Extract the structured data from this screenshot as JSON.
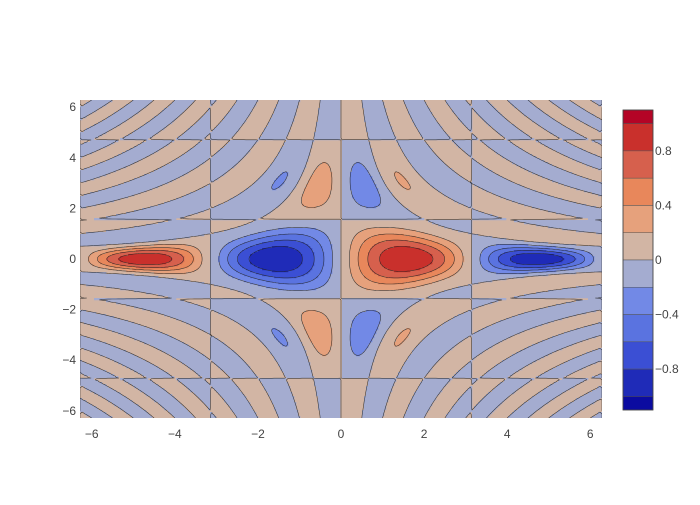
{
  "chart_data": {
    "type": "contour",
    "function": "z = sin(x) * cos(y) * sin(x*y) / (x*y)",
    "x_range": [
      -6.2832,
      6.2832
    ],
    "y_range": [
      -6.2832,
      6.2832
    ],
    "x_ticks": [
      -6,
      -4,
      -2,
      0,
      2,
      4,
      6
    ],
    "x_tick_labels": [
      "−6",
      "−4",
      "−2",
      "0",
      "2",
      "4",
      "6"
    ],
    "y_ticks": [
      -6,
      -4,
      -2,
      0,
      2,
      4,
      6
    ],
    "y_tick_labels": [
      "−6",
      "−4",
      "−2",
      "0",
      "2",
      "4",
      "6"
    ],
    "contour_levels": [
      -1,
      -0.9,
      -0.8,
      -0.7,
      -0.6,
      -0.5,
      -0.4,
      -0.3,
      -0.2,
      -0.1,
      0,
      0.1,
      0.2,
      0.3,
      0.4,
      0.5,
      0.6,
      0.7,
      0.8,
      0.9,
      1
    ],
    "z_range": [
      -1.1,
      1.1
    ],
    "colorbar": {
      "ticks": [
        0.8,
        0.4,
        0,
        -0.4,
        -0.8
      ],
      "tick_labels": [
        "0.8",
        "0.4",
        "0",
        "−0.4",
        "−0.8"
      ],
      "bands": [
        {
          "from": 1.0,
          "to": 1.1,
          "color": "#b40426"
        },
        {
          "from": 0.8,
          "to": 1.0,
          "color": "#c9302c"
        },
        {
          "from": 0.6,
          "to": 0.8,
          "color": "#d6604d"
        },
        {
          "from": 0.4,
          "to": 0.6,
          "color": "#e8875b"
        },
        {
          "from": 0.2,
          "to": 0.4,
          "color": "#e6a17c"
        },
        {
          "from": 0.0,
          "to": 0.2,
          "color": "#d2b5a4"
        },
        {
          "from": -0.2,
          "to": 0.0,
          "color": "#a4acd0"
        },
        {
          "from": -0.4,
          "to": -0.2,
          "color": "#7289e6"
        },
        {
          "from": -0.6,
          "to": -0.4,
          "color": "#5a73e0"
        },
        {
          "from": -0.8,
          "to": -0.6,
          "color": "#3b4fd4"
        },
        {
          "from": -1.0,
          "to": -0.8,
          "color": "#1f2bb8"
        },
        {
          "from": -1.1,
          "to": -1.0,
          "color": "#0b0ba0"
        }
      ]
    },
    "colorscale": [
      "#0b0ba0",
      "#1f2bb8",
      "#3b4fd4",
      "#5a73e0",
      "#7289e6",
      "#a4acd0",
      "#d2b5a4",
      "#e6a17c",
      "#e8875b",
      "#d6604d",
      "#c9302c",
      "#b40426"
    ],
    "line_color": "#222222",
    "grid": false,
    "title": "",
    "xlabel": "",
    "ylabel": ""
  }
}
